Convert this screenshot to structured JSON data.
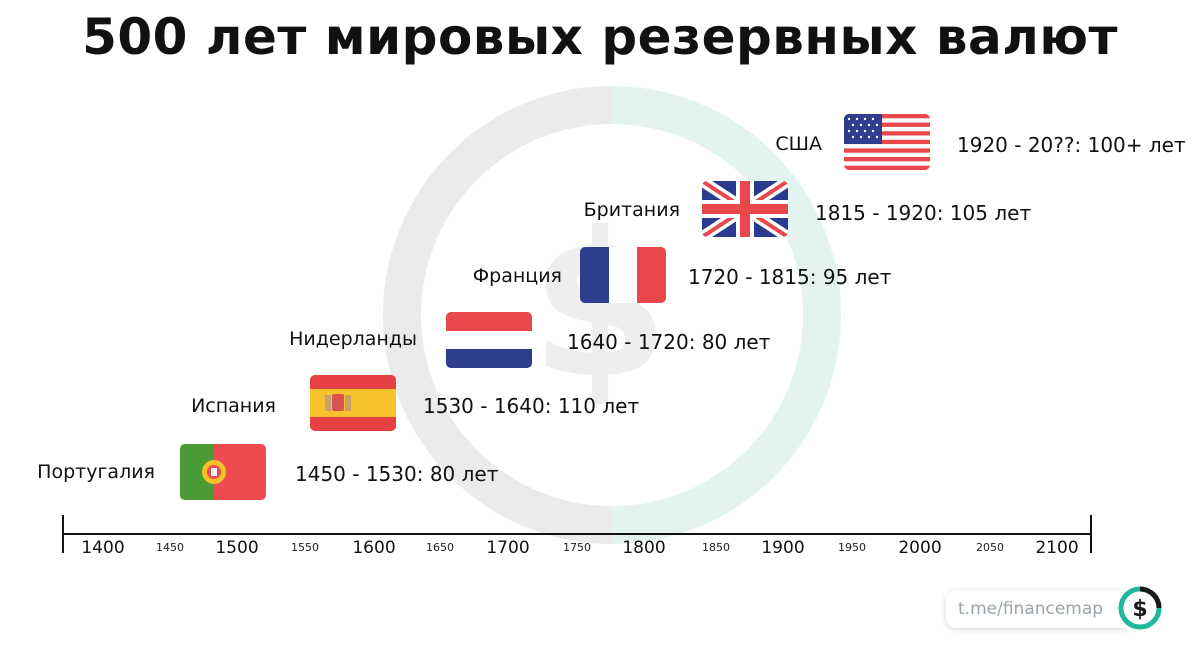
{
  "title": "500 лет мировых резервных валют",
  "timeline": [
    {
      "country": "Португалия",
      "period": "1450 - 1530: 80 лет",
      "flag": "portugal-flag-icon"
    },
    {
      "country": "Испания",
      "period": "1530 - 1640: 110 лет",
      "flag": "spain-flag-icon"
    },
    {
      "country": "Нидерланды",
      "period": "1640 - 1720: 80 лет",
      "flag": "netherlands-flag-icon"
    },
    {
      "country": "Франция",
      "period": "1720 - 1815: 95 лет",
      "flag": "france-flag-icon"
    },
    {
      "country": "Британия",
      "period": "1815 - 1920: 105 лет",
      "flag": "uk-flag-icon"
    },
    {
      "country": "США",
      "period": "1920 - 20??: 100+ лет",
      "flag": "usa-flag-icon"
    }
  ],
  "axis": {
    "major_ticks": [
      "1400",
      "1500",
      "1600",
      "1700",
      "1800",
      "1900",
      "2000",
      "2100"
    ],
    "minor_ticks": [
      "1450",
      "1550",
      "1650",
      "1750",
      "1850",
      "1950",
      "2050"
    ]
  },
  "footer": {
    "link": "t.me/financemap",
    "logo_icon": "dollar-logo-icon"
  },
  "colors": {
    "watermark_gray": "#e9ebec",
    "watermark_teal": "#e3f4f0",
    "logo_teal": "#1fb89a"
  }
}
